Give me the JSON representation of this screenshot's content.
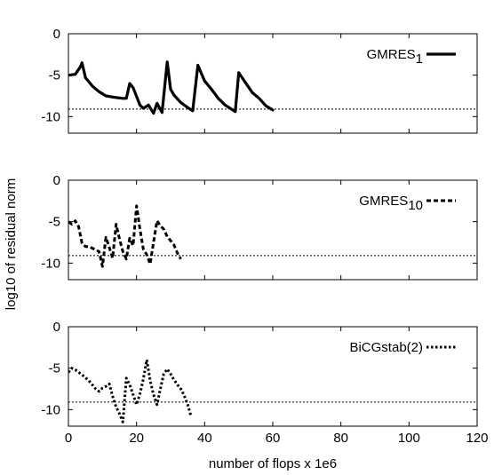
{
  "chart_data": [
    {
      "type": "line",
      "title": "",
      "xlabel": "",
      "ylabel": "",
      "xlim": [
        0,
        120
      ],
      "ylim": [
        -12,
        0
      ],
      "yticks": [
        0,
        -5,
        -10
      ],
      "xticks": [],
      "grid": false,
      "legend_position": "top-right",
      "series": [
        {
          "name": "GMRES",
          "name_subscript": "1",
          "line_style": "solid",
          "x": [
            0,
            2,
            3.5,
            4,
            5,
            7,
            9,
            11,
            14,
            16,
            17,
            18,
            19,
            21,
            22,
            23.5,
            25,
            26,
            27.5,
            29,
            30,
            31,
            33,
            35,
            36.5,
            38,
            40,
            42,
            44,
            46,
            47.5,
            49,
            50,
            52,
            54,
            56,
            58,
            60
          ],
          "y": [
            -5,
            -4.9,
            -4,
            -3.5,
            -5.3,
            -6.3,
            -7,
            -7.5,
            -7.7,
            -7.8,
            -7.8,
            -6,
            -6.5,
            -8.6,
            -9,
            -8.6,
            -9.6,
            -8.4,
            -9.5,
            -3.4,
            -6.7,
            -7.4,
            -8.3,
            -8.9,
            -9.3,
            -3.8,
            -5.7,
            -6.7,
            -7.8,
            -8.6,
            -9,
            -9.4,
            -4.7,
            -5.9,
            -7.1,
            -7.8,
            -8.7,
            -9.2
          ]
        },
        {
          "name": "reference level",
          "line_style": "dotted-thin",
          "x": [
            0,
            120
          ],
          "y": [
            -9.1,
            -9.1
          ]
        }
      ]
    },
    {
      "type": "line",
      "title": "",
      "xlabel": "",
      "ylabel": "log10 of residual norm",
      "xlim": [
        0,
        120
      ],
      "ylim": [
        -12,
        0
      ],
      "yticks": [
        0,
        -5,
        -10
      ],
      "xticks": [],
      "grid": false,
      "legend_position": "top-right",
      "series": [
        {
          "name": "GMRES",
          "name_subscript": "10",
          "line_style": "dashed",
          "x": [
            0,
            1,
            2,
            3,
            4,
            5,
            6,
            7,
            8,
            9,
            10,
            11,
            12,
            13,
            14,
            15,
            16,
            17,
            18,
            19,
            20,
            21,
            22,
            23,
            24,
            25,
            26,
            27,
            28,
            29,
            30,
            31,
            32,
            33
          ],
          "y": [
            -5,
            -5.3,
            -4.9,
            -5.6,
            -7.6,
            -8,
            -8,
            -8.2,
            -8.4,
            -8.6,
            -10.4,
            -6.9,
            -8.1,
            -9.4,
            -5.3,
            -7.1,
            -8.6,
            -9.5,
            -7,
            -7.9,
            -3.1,
            -5.9,
            -8.3,
            -9,
            -10.1,
            -7.5,
            -4.9,
            -5.5,
            -5.9,
            -6.8,
            -7.3,
            -7.8,
            -8.8,
            -9.5
          ]
        },
        {
          "name": "reference level",
          "line_style": "dotted-thin",
          "x": [
            0,
            120
          ],
          "y": [
            -9.1,
            -9.1
          ]
        }
      ]
    },
    {
      "type": "line",
      "title": "",
      "xlabel": "number of flops x 1e6",
      "ylabel": "",
      "xlim": [
        0,
        120
      ],
      "ylim": [
        -12,
        0
      ],
      "yticks": [
        0,
        -5,
        -10
      ],
      "xticks": [
        0,
        20,
        40,
        60,
        80,
        100,
        120
      ],
      "grid": false,
      "legend_position": "top-right",
      "series": [
        {
          "name": "BiCGstab(2)",
          "name_subscript": "",
          "line_style": "dotted",
          "x": [
            0,
            1,
            2,
            4,
            6,
            7,
            8,
            9,
            10,
            11,
            12,
            13,
            14,
            15,
            16,
            17,
            18,
            19,
            20,
            21,
            22,
            23,
            24,
            25,
            26,
            27,
            28,
            29,
            30,
            31,
            32,
            33,
            34,
            35,
            36
          ],
          "y": [
            -5.5,
            -5,
            -5.2,
            -5.8,
            -6.5,
            -7,
            -7.5,
            -7.8,
            -7.4,
            -7.2,
            -6.9,
            -8.4,
            -9.7,
            -10.5,
            -11.5,
            -6.2,
            -7,
            -8.2,
            -9.4,
            -8.1,
            -6.3,
            -4,
            -6.5,
            -8.2,
            -9.4,
            -7.5,
            -5.7,
            -5.1,
            -5.7,
            -6.4,
            -7,
            -7.5,
            -8.3,
            -9.4,
            -10.8
          ]
        },
        {
          "name": "reference level",
          "line_style": "dotted-thin",
          "x": [
            0,
            120
          ],
          "y": [
            -9.1,
            -9.1
          ]
        }
      ]
    }
  ]
}
